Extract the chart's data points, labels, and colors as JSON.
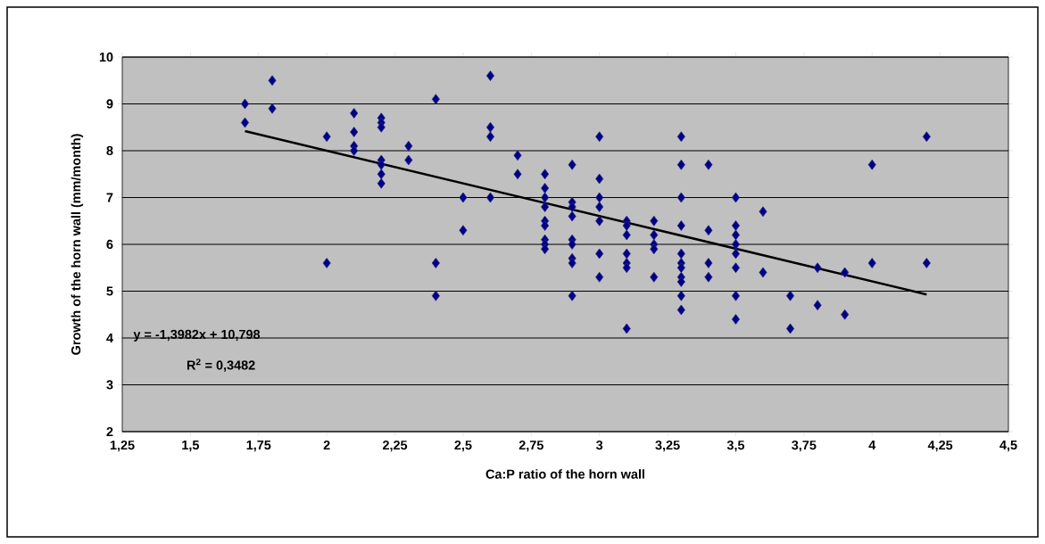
{
  "chart_data": {
    "type": "scatter",
    "xlabel": "Ca:P ratio of the horn wall",
    "ylabel": "Growth of the horn wall (mm/month)",
    "annotations": [
      "y = -1,3982x + 10,798",
      "R$^{2}$ = 0,3482"
    ],
    "xlim": [
      1.25,
      4.5
    ],
    "xticks": [
      {
        "value": 1.25,
        "label": "1,25"
      },
      {
        "value": 1.5,
        "label": "1,5"
      },
      {
        "value": 1.75,
        "label": "1,75"
      },
      2,
      {
        "value": 2.25,
        "label": "2,25"
      },
      {
        "value": 2.5,
        "label": "2,5"
      },
      {
        "value": 2.75,
        "label": "2,75"
      },
      3,
      {
        "value": 3.25,
        "label": "3,25"
      },
      {
        "value": 3.5,
        "label": "3,5"
      },
      {
        "value": 3.75,
        "label": "3,75"
      },
      4,
      {
        "value": 4.25,
        "label": "4,25"
      },
      {
        "value": 4.5,
        "label": "4,5"
      }
    ],
    "ylim": [
      2,
      10
    ],
    "yticks": [
      2,
      3,
      4,
      5,
      6,
      7,
      8,
      9,
      10
    ],
    "grid": "y",
    "series": [
      {
        "marker": "diamond",
        "color": "#000080",
        "x": [
          1.7,
          1.7,
          1.8,
          1.8,
          2.0,
          2.0,
          2.1,
          2.1,
          2.1,
          2.1,
          2.2,
          2.2,
          2.2,
          2.2,
          2.2,
          2.2,
          2.2,
          2.3,
          2.3,
          2.4,
          2.4,
          2.4,
          2.5,
          2.5,
          2.6,
          2.6,
          2.6,
          2.6,
          2.7,
          2.7,
          2.8,
          2.8,
          2.8,
          2.8,
          2.8,
          2.8,
          2.8,
          2.8,
          2.8,
          2.9,
          2.9,
          2.9,
          2.9,
          2.9,
          2.9,
          2.9,
          2.9,
          2.9,
          3.0,
          3.0,
          3.0,
          3.0,
          3.0,
          3.0,
          3.0,
          3.1,
          3.1,
          3.1,
          3.1,
          3.1,
          3.1,
          3.1,
          3.2,
          3.2,
          3.2,
          3.2,
          3.2,
          3.3,
          3.3,
          3.3,
          3.3,
          3.3,
          3.3,
          3.3,
          3.3,
          3.3,
          3.3,
          3.3,
          3.4,
          3.4,
          3.4,
          3.4,
          3.5,
          3.5,
          3.5,
          3.5,
          3.5,
          3.5,
          3.5,
          3.5,
          3.6,
          3.6,
          3.7,
          3.7,
          3.8,
          3.8,
          3.9,
          3.9,
          4.0,
          4.0,
          4.2,
          4.2
        ],
        "values": [
          9.0,
          8.6,
          9.5,
          8.9,
          8.3,
          5.6,
          8.8,
          8.4,
          8.1,
          8.0,
          8.7,
          8.6,
          8.5,
          7.8,
          7.7,
          7.5,
          7.3,
          8.1,
          7.8,
          9.1,
          5.6,
          4.9,
          7.0,
          6.3,
          9.6,
          8.5,
          8.3,
          7.0,
          7.9,
          7.5,
          7.5,
          7.2,
          7.0,
          6.8,
          6.5,
          6.4,
          6.1,
          6.0,
          5.9,
          7.7,
          6.9,
          6.8,
          6.6,
          6.1,
          6.0,
          5.7,
          5.6,
          4.9,
          8.3,
          7.4,
          7.0,
          6.8,
          6.5,
          5.8,
          5.3,
          6.5,
          6.4,
          6.2,
          5.8,
          5.6,
          5.5,
          4.2,
          6.5,
          6.2,
          6.0,
          5.9,
          5.3,
          8.3,
          7.7,
          7.0,
          6.4,
          5.8,
          5.6,
          5.5,
          5.3,
          5.2,
          4.9,
          4.6,
          7.7,
          6.3,
          5.6,
          5.3,
          7.0,
          6.4,
          6.2,
          6.0,
          5.8,
          5.5,
          4.9,
          4.4,
          6.7,
          5.4,
          4.9,
          4.2,
          5.5,
          4.7,
          5.4,
          4.5,
          7.7,
          5.6,
          8.3,
          5.6
        ]
      },
      {
        "type": "line",
        "marker": "none",
        "color": "#000000",
        "x": [
          1.7,
          4.2
        ],
        "values": [
          8.42,
          4.93
        ]
      }
    ]
  }
}
